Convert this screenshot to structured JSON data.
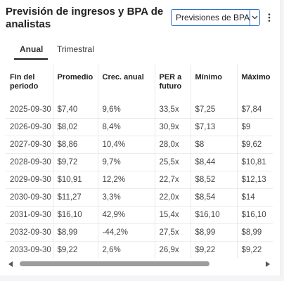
{
  "header": {
    "title": "Previsión de ingresos y BPA de analistas"
  },
  "selector": {
    "selected": "Previsiones de BPA",
    "arrow_icon": "chevron-down-icon"
  },
  "more_icon": "vertical-dots-icon",
  "tabs": [
    {
      "label": "Anual",
      "active": true
    },
    {
      "label": "Trimestral",
      "active": false
    }
  ],
  "table": {
    "headers": [
      "Fin del periodo",
      "Promedio",
      "Crec. anual",
      "PER a futuro",
      "Mínimo",
      "Máximo"
    ],
    "rows": [
      [
        "2025-09-30",
        "$7,40",
        "9,6%",
        "33,5x",
        "$7,25",
        "$7,84"
      ],
      [
        "2026-09-30",
        "$8,02",
        "8,4%",
        "30,9x",
        "$7,13",
        "$9"
      ],
      [
        "2027-09-30",
        "$8,86",
        "10,4%",
        "28,0x",
        "$8",
        "$9,62"
      ],
      [
        "2028-09-30",
        "$9,72",
        "9,7%",
        "25,5x",
        "$8,44",
        "$10,81"
      ],
      [
        "2029-09-30",
        "$10,91",
        "12,2%",
        "22,7x",
        "$8,52",
        "$12,13"
      ],
      [
        "2030-09-30",
        "$11,27",
        "3,3%",
        "22,0x",
        "$8,54",
        "$14"
      ],
      [
        "2031-09-30",
        "$16,10",
        "42,9%",
        "15,4x",
        "$16,10",
        "$16,10"
      ],
      [
        "2032-09-30",
        "$8,99",
        "-44,2%",
        "27,5x",
        "$8,99",
        "$8,99"
      ],
      [
        "2033-09-30",
        "$9,22",
        "2,6%",
        "26,9x",
        "$9,22",
        "$9,22"
      ]
    ]
  },
  "scrollbar": {
    "left_icon": "triangle-left-icon",
    "right_icon": "triangle-right-icon"
  }
}
